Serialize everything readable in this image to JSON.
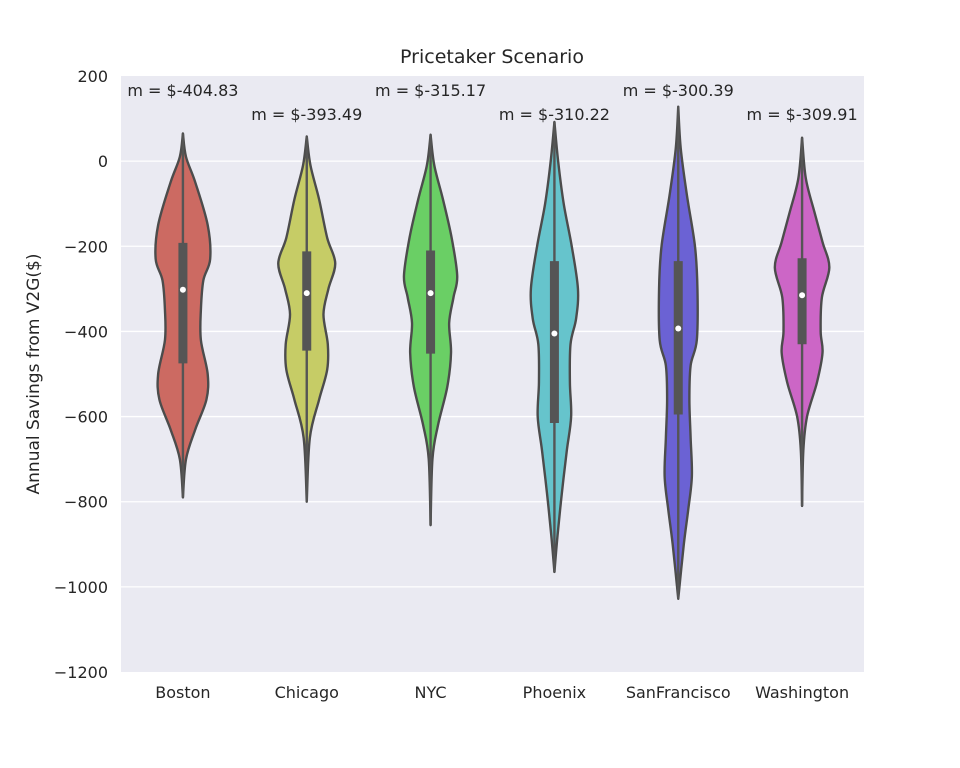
{
  "chart_data": {
    "type": "violin",
    "title": "Pricetaker Scenario",
    "xlabel": "",
    "ylabel": "Annual Savings from V2G($)",
    "ylim": [
      -1200,
      200
    ],
    "yticks": [
      -1200,
      -1000,
      -800,
      -600,
      -400,
      -200,
      0,
      200
    ],
    "ytick_labels": [
      "−1200",
      "−1000",
      "−800",
      "−600",
      "−400",
      "−200",
      "0",
      "200"
    ],
    "grid": true,
    "categories": [
      "Boston",
      "Chicago",
      "NYC",
      "Phoenix",
      "SanFrancisco",
      "Washington"
    ],
    "series": [
      {
        "category": "Boston",
        "color": "#cc6a62",
        "annotation": "m = $-404.83",
        "min": -790,
        "q1": -475,
        "median": -302,
        "q3": -192,
        "max": 65,
        "width_profile": [
          [
            65,
            0.0
          ],
          [
            10,
            0.05
          ],
          [
            -50,
            0.2
          ],
          [
            -150,
            0.4
          ],
          [
            -230,
            0.44
          ],
          [
            -280,
            0.33
          ],
          [
            -350,
            0.29
          ],
          [
            -420,
            0.29
          ],
          [
            -500,
            0.4
          ],
          [
            -560,
            0.38
          ],
          [
            -630,
            0.2
          ],
          [
            -700,
            0.05
          ],
          [
            -790,
            0.0
          ]
        ]
      },
      {
        "category": "Chicago",
        "color": "#c6cc66",
        "annotation": "m = $-393.49",
        "min": -800,
        "q1": -445,
        "median": -310,
        "q3": -212,
        "max": 58,
        "width_profile": [
          [
            58,
            0.0
          ],
          [
            -10,
            0.06
          ],
          [
            -90,
            0.2
          ],
          [
            -180,
            0.33
          ],
          [
            -240,
            0.46
          ],
          [
            -300,
            0.35
          ],
          [
            -360,
            0.27
          ],
          [
            -430,
            0.34
          ],
          [
            -490,
            0.33
          ],
          [
            -560,
            0.2
          ],
          [
            -650,
            0.05
          ],
          [
            -800,
            0.0
          ]
        ]
      },
      {
        "category": "NYC",
        "color": "#6acf65",
        "annotation": "m = $-315.17",
        "min": -855,
        "q1": -452,
        "median": -310,
        "q3": -210,
        "max": 62,
        "width_profile": [
          [
            62,
            0.0
          ],
          [
            -10,
            0.06
          ],
          [
            -90,
            0.2
          ],
          [
            -180,
            0.34
          ],
          [
            -270,
            0.43
          ],
          [
            -320,
            0.37
          ],
          [
            -380,
            0.3
          ],
          [
            -450,
            0.33
          ],
          [
            -530,
            0.27
          ],
          [
            -620,
            0.12
          ],
          [
            -700,
            0.03
          ],
          [
            -855,
            0.0
          ]
        ]
      },
      {
        "category": "Phoenix",
        "color": "#66c4cc",
        "annotation": "m = $-310.22",
        "min": -965,
        "q1": -615,
        "median": -405,
        "q3": -235,
        "max": 92,
        "width_profile": [
          [
            92,
            0.0
          ],
          [
            0,
            0.06
          ],
          [
            -100,
            0.15
          ],
          [
            -200,
            0.28
          ],
          [
            -300,
            0.38
          ],
          [
            -370,
            0.35
          ],
          [
            -430,
            0.26
          ],
          [
            -520,
            0.25
          ],
          [
            -600,
            0.27
          ],
          [
            -680,
            0.2
          ],
          [
            -780,
            0.12
          ],
          [
            -880,
            0.05
          ],
          [
            -965,
            0.0
          ]
        ]
      },
      {
        "category": "SanFrancisco",
        "color": "#6b62d4",
        "annotation": "m = $-300.39",
        "min": -1028,
        "q1": -595,
        "median": -393,
        "q3": -235,
        "max": 128,
        "width_profile": [
          [
            128,
            0.0
          ],
          [
            30,
            0.04
          ],
          [
            -80,
            0.14
          ],
          [
            -200,
            0.27
          ],
          [
            -300,
            0.31
          ],
          [
            -420,
            0.3
          ],
          [
            -480,
            0.2
          ],
          [
            -560,
            0.18
          ],
          [
            -650,
            0.2
          ],
          [
            -740,
            0.22
          ],
          [
            -820,
            0.16
          ],
          [
            -900,
            0.09
          ],
          [
            -1028,
            0.0
          ]
        ]
      },
      {
        "category": "Washington",
        "color": "#cc66c6",
        "annotation": "m = $-309.91",
        "min": -810,
        "q1": -430,
        "median": -315,
        "q3": -228,
        "max": 55,
        "width_profile": [
          [
            55,
            0.0
          ],
          [
            -40,
            0.06
          ],
          [
            -120,
            0.2
          ],
          [
            -190,
            0.33
          ],
          [
            -250,
            0.44
          ],
          [
            -320,
            0.32
          ],
          [
            -400,
            0.3
          ],
          [
            -450,
            0.33
          ],
          [
            -520,
            0.24
          ],
          [
            -600,
            0.08
          ],
          [
            -680,
            0.02
          ],
          [
            -810,
            0.0
          ]
        ]
      }
    ]
  }
}
